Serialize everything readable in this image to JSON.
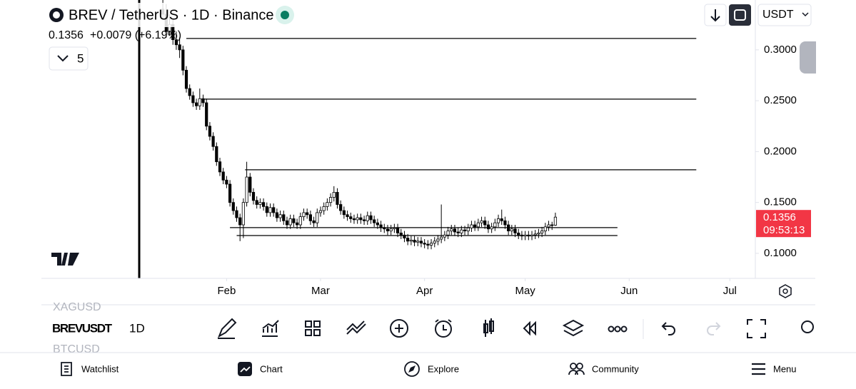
{
  "header": {
    "symbol": "BREV / TetherUS · 1D · Binance",
    "price": "0.1356",
    "change": "+0.0079 (+6.19%)",
    "indicator_count": "5",
    "currency": "USDT"
  },
  "chart_data": {
    "type": "candlestick",
    "ohlc": [
      [
        0.34,
        0.36,
        0.33,
        0.335
      ],
      [
        0.335,
        0.345,
        0.312,
        0.318
      ],
      [
        0.318,
        0.335,
        0.314,
        0.325
      ],
      [
        0.325,
        0.33,
        0.305,
        0.31
      ],
      [
        0.31,
        0.318,
        0.3,
        0.305
      ],
      [
        0.305,
        0.312,
        0.292,
        0.3
      ],
      [
        0.3,
        0.304,
        0.275,
        0.28
      ],
      [
        0.28,
        0.284,
        0.258,
        0.262
      ],
      [
        0.262,
        0.266,
        0.251,
        0.255
      ],
      [
        0.255,
        0.259,
        0.244,
        0.248
      ],
      [
        0.248,
        0.252,
        0.241,
        0.245
      ],
      [
        0.245,
        0.262,
        0.241,
        0.252
      ],
      [
        0.252,
        0.256,
        0.244,
        0.248
      ],
      [
        0.248,
        0.252,
        0.221,
        0.225
      ],
      [
        0.225,
        0.229,
        0.211,
        0.215
      ],
      [
        0.215,
        0.219,
        0.201,
        0.205
      ],
      [
        0.205,
        0.209,
        0.186,
        0.19
      ],
      [
        0.19,
        0.194,
        0.176,
        0.18
      ],
      [
        0.18,
        0.184,
        0.168,
        0.172
      ],
      [
        0.172,
        0.176,
        0.164,
        0.168
      ],
      [
        0.168,
        0.172,
        0.146,
        0.15
      ],
      [
        0.15,
        0.154,
        0.138,
        0.142
      ],
      [
        0.142,
        0.146,
        0.131,
        0.135
      ],
      [
        0.135,
        0.139,
        0.112,
        0.128
      ],
      [
        0.128,
        0.154,
        0.115,
        0.15
      ],
      [
        0.15,
        0.19,
        0.146,
        0.175
      ],
      [
        0.175,
        0.179,
        0.156,
        0.16
      ],
      [
        0.16,
        0.164,
        0.148,
        0.152
      ],
      [
        0.152,
        0.156,
        0.144,
        0.148
      ],
      [
        0.148,
        0.154,
        0.144,
        0.15
      ],
      [
        0.15,
        0.154,
        0.142,
        0.146
      ],
      [
        0.146,
        0.15,
        0.136,
        0.14
      ],
      [
        0.14,
        0.149,
        0.136,
        0.145
      ],
      [
        0.145,
        0.149,
        0.136,
        0.14
      ],
      [
        0.14,
        0.144,
        0.131,
        0.135
      ],
      [
        0.135,
        0.142,
        0.131,
        0.138
      ],
      [
        0.138,
        0.142,
        0.128,
        0.132
      ],
      [
        0.132,
        0.136,
        0.124,
        0.128
      ],
      [
        0.128,
        0.138,
        0.124,
        0.134
      ],
      [
        0.134,
        0.138,
        0.126,
        0.13
      ],
      [
        0.13,
        0.134,
        0.124,
        0.128
      ],
      [
        0.128,
        0.14,
        0.124,
        0.136
      ],
      [
        0.136,
        0.144,
        0.132,
        0.14
      ],
      [
        0.14,
        0.144,
        0.134,
        0.138
      ],
      [
        0.138,
        0.142,
        0.128,
        0.132
      ],
      [
        0.132,
        0.136,
        0.126,
        0.13
      ],
      [
        0.13,
        0.144,
        0.126,
        0.14
      ],
      [
        0.14,
        0.146,
        0.136,
        0.142
      ],
      [
        0.142,
        0.15,
        0.138,
        0.146
      ],
      [
        0.146,
        0.154,
        0.142,
        0.15
      ],
      [
        0.15,
        0.159,
        0.146,
        0.155
      ],
      [
        0.155,
        0.166,
        0.151,
        0.16
      ],
      [
        0.16,
        0.164,
        0.144,
        0.148
      ],
      [
        0.148,
        0.152,
        0.138,
        0.142
      ],
      [
        0.142,
        0.146,
        0.134,
        0.138
      ],
      [
        0.138,
        0.142,
        0.132,
        0.136
      ],
      [
        0.136,
        0.14,
        0.13,
        0.134
      ],
      [
        0.134,
        0.138,
        0.129,
        0.133
      ],
      [
        0.133,
        0.139,
        0.129,
        0.135
      ],
      [
        0.135,
        0.139,
        0.129,
        0.133
      ],
      [
        0.133,
        0.137,
        0.128,
        0.132
      ],
      [
        0.132,
        0.141,
        0.128,
        0.137
      ],
      [
        0.137,
        0.141,
        0.129,
        0.133
      ],
      [
        0.133,
        0.137,
        0.126,
        0.13
      ],
      [
        0.13,
        0.134,
        0.124,
        0.128
      ],
      [
        0.128,
        0.132,
        0.121,
        0.125
      ],
      [
        0.125,
        0.129,
        0.12,
        0.124
      ],
      [
        0.124,
        0.128,
        0.118,
        0.122
      ],
      [
        0.122,
        0.128,
        0.118,
        0.124
      ],
      [
        0.124,
        0.129,
        0.12,
        0.125
      ],
      [
        0.125,
        0.129,
        0.116,
        0.12
      ],
      [
        0.12,
        0.124,
        0.114,
        0.118
      ],
      [
        0.118,
        0.122,
        0.111,
        0.115
      ],
      [
        0.115,
        0.119,
        0.108,
        0.112
      ],
      [
        0.112,
        0.117,
        0.108,
        0.113
      ],
      [
        0.113,
        0.117,
        0.107,
        0.111
      ],
      [
        0.111,
        0.116,
        0.107,
        0.112
      ],
      [
        0.112,
        0.116,
        0.106,
        0.11
      ],
      [
        0.11,
        0.114,
        0.105,
        0.109
      ],
      [
        0.109,
        0.113,
        0.104,
        0.108
      ],
      [
        0.108,
        0.114,
        0.104,
        0.11
      ],
      [
        0.11,
        0.116,
        0.106,
        0.112
      ],
      [
        0.112,
        0.118,
        0.108,
        0.114
      ],
      [
        0.114,
        0.148,
        0.11,
        0.116
      ],
      [
        0.116,
        0.122,
        0.112,
        0.118
      ],
      [
        0.118,
        0.126,
        0.114,
        0.122
      ],
      [
        0.122,
        0.128,
        0.118,
        0.124
      ],
      [
        0.124,
        0.128,
        0.117,
        0.121
      ],
      [
        0.121,
        0.125,
        0.116,
        0.12
      ],
      [
        0.12,
        0.127,
        0.116,
        0.123
      ],
      [
        0.123,
        0.127,
        0.118,
        0.122
      ],
      [
        0.122,
        0.129,
        0.118,
        0.125
      ],
      [
        0.125,
        0.132,
        0.121,
        0.128
      ],
      [
        0.128,
        0.132,
        0.122,
        0.126
      ],
      [
        0.126,
        0.134,
        0.122,
        0.13
      ],
      [
        0.13,
        0.136,
        0.126,
        0.132
      ],
      [
        0.132,
        0.136,
        0.124,
        0.128
      ],
      [
        0.128,
        0.132,
        0.12,
        0.124
      ],
      [
        0.124,
        0.13,
        0.12,
        0.126
      ],
      [
        0.126,
        0.134,
        0.122,
        0.13
      ],
      [
        0.13,
        0.138,
        0.126,
        0.134
      ],
      [
        0.134,
        0.143,
        0.128,
        0.132
      ],
      [
        0.132,
        0.136,
        0.124,
        0.128
      ],
      [
        0.128,
        0.132,
        0.118,
        0.122
      ],
      [
        0.122,
        0.128,
        0.118,
        0.124
      ],
      [
        0.124,
        0.128,
        0.116,
        0.12
      ],
      [
        0.12,
        0.124,
        0.114,
        0.118
      ],
      [
        0.118,
        0.122,
        0.113,
        0.117
      ],
      [
        0.117,
        0.122,
        0.113,
        0.118
      ],
      [
        0.118,
        0.122,
        0.113,
        0.117
      ],
      [
        0.117,
        0.122,
        0.113,
        0.118
      ],
      [
        0.118,
        0.123,
        0.114,
        0.119
      ],
      [
        0.119,
        0.124,
        0.115,
        0.12
      ],
      [
        0.12,
        0.126,
        0.116,
        0.122
      ],
      [
        0.122,
        0.13,
        0.118,
        0.126
      ],
      [
        0.126,
        0.132,
        0.122,
        0.128
      ],
      [
        0.128,
        0.131,
        0.123,
        0.1277
      ],
      [
        0.1277,
        0.14,
        0.127,
        0.1356
      ]
    ],
    "up_color": "#ffffff",
    "down_color": "#000000",
    "wick_color": "#000000",
    "levels": [
      {
        "value": 0.3112,
        "from": 7,
        "to": 159
      },
      {
        "value": 0.2516,
        "from": 11.5,
        "to": 159
      },
      {
        "value": 0.1821,
        "from": 24.5,
        "to": 159
      },
      {
        "value": 0.1253,
        "from": 20,
        "to": 135.5
      },
      {
        "value": 0.1175,
        "from": 22,
        "to": 135.5
      }
    ],
    "xlim": [
      -36.2,
      176.6
    ],
    "xticks": [
      {
        "value": 19,
        "label": "Feb"
      },
      {
        "value": 47,
        "label": "Mar"
      },
      {
        "value": 78,
        "label": "Apr"
      },
      {
        "value": 108,
        "label": "May"
      },
      {
        "value": 139,
        "label": "Jun"
      },
      {
        "value": 169,
        "label": "Jul"
      }
    ],
    "ylim": [
      0.0754,
      0.349
    ],
    "yticks": [
      {
        "value": 0.3,
        "label": "0.3000"
      },
      {
        "value": 0.25,
        "label": "0.2500"
      },
      {
        "value": 0.2,
        "label": "0.2000"
      },
      {
        "value": 0.15,
        "label": "0.1500"
      },
      {
        "value": 0.1,
        "label": "0.1000"
      }
    ],
    "last_price": {
      "value": 0.1356,
      "label": "0.1356"
    },
    "countdown": "09:53:13",
    "price_tag_color": "#f23645"
  },
  "toolbar": {
    "symbols": [
      "XAGUSD",
      "BREVUSDT",
      "BTCUSD"
    ],
    "interval": "1D"
  },
  "nav": [
    "Watchlist",
    "Chart",
    "Explore",
    "Community",
    "Menu"
  ]
}
